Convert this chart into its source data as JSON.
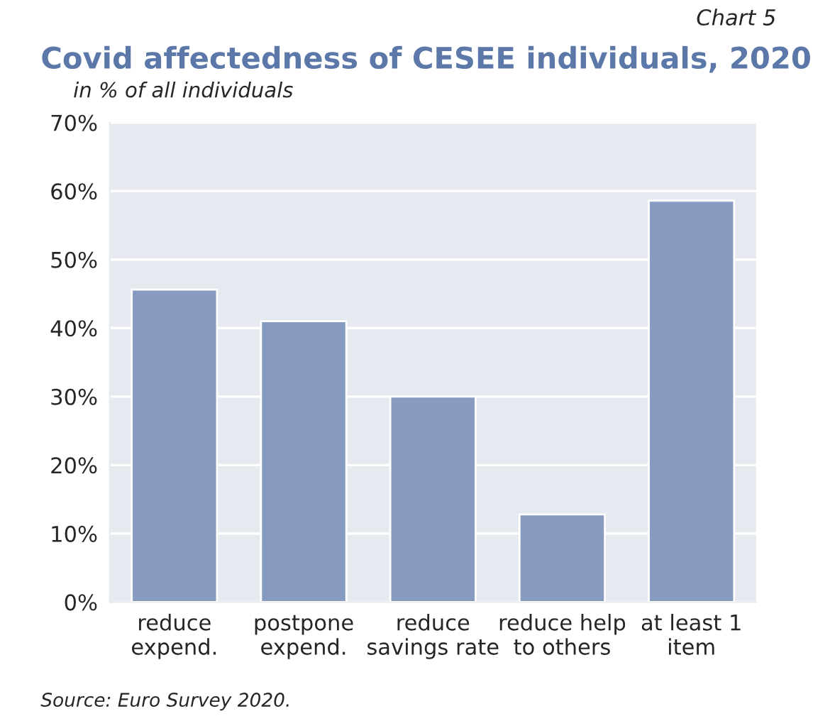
{
  "chart_data": {
    "type": "bar",
    "title": "Covid affectedness of CESEE individuals, 2020",
    "subtitle": "in % of all individuals",
    "annotations": [
      "Chart 5",
      "Source: Euro Survey 2020."
    ],
    "categories": [
      "reduce\nexpend.",
      "postpone\nexpend.",
      "reduce\nsavings rate",
      "reduce help\nto others",
      "at least 1\nitem"
    ],
    "values": [
      45.6,
      41.0,
      30.0,
      12.8,
      58.6
    ],
    "color": "#869bbf",
    "ylim": [
      0,
      70
    ],
    "yticks": [
      {
        "value": 0,
        "label": "0%"
      },
      {
        "value": 10,
        "label": "10%"
      },
      {
        "value": 20,
        "label": "20%"
      },
      {
        "value": 30,
        "label": "30%"
      },
      {
        "value": 40,
        "label": "40%"
      },
      {
        "value": 50,
        "label": "50%"
      },
      {
        "value": 60,
        "label": "60%"
      },
      {
        "value": 70,
        "label": "70%"
      }
    ],
    "grid": "y"
  }
}
